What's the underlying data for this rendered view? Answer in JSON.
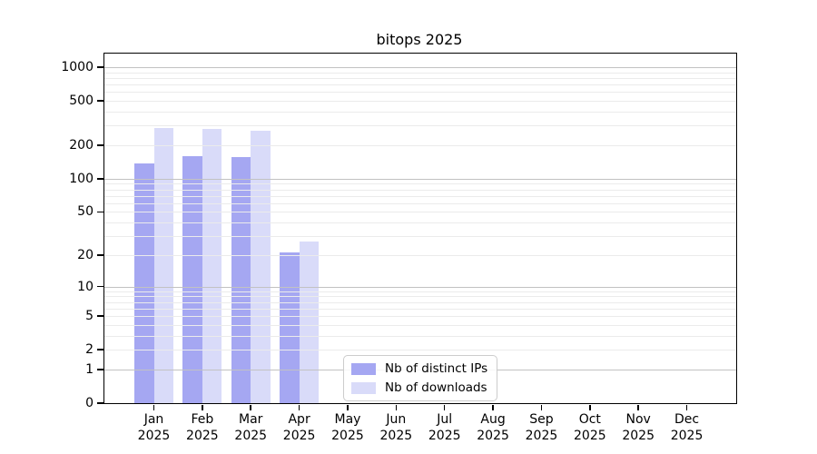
{
  "title": "bitops 2025",
  "style": {
    "background": "#ffffff",
    "spine_color": "#000000",
    "grid_major_color": "#c2c2c2",
    "grid_minor_color": "#ebebeb",
    "text_color": "#000000",
    "legend_border_color": "#cccccc"
  },
  "legend": {
    "items": [
      {
        "label": "Nb of distinct IPs"
      },
      {
        "label": "Nb of downloads"
      }
    ]
  },
  "chart_data": {
    "type": "bar",
    "title": "bitops 2025",
    "categories": [
      "Jan 2025",
      "Feb 2025",
      "Mar 2025",
      "Apr 2025",
      "May 2025",
      "Jun 2025",
      "Jul 2025",
      "Aug 2025",
      "Sep 2025",
      "Oct 2025",
      "Nov 2025",
      "Dec 2025"
    ],
    "series": [
      {
        "name": "Nb of distinct IPs",
        "color": "#a5a7f2",
        "values": [
          137,
          161,
          156,
          21,
          0,
          0,
          0,
          0,
          0,
          0,
          0,
          0
        ]
      },
      {
        "name": "Nb of downloads",
        "color": "#d9dbf9",
        "values": [
          287,
          278,
          270,
          27,
          0,
          0,
          0,
          0,
          0,
          0,
          0,
          0
        ]
      }
    ],
    "xlabel": "",
    "ylabel": "",
    "yscale": "log1p",
    "yticks": [
      0,
      1,
      2,
      5,
      10,
      20,
      50,
      100,
      200,
      500,
      1000
    ],
    "ylim": [
      0,
      1325
    ],
    "grid": "both",
    "legend_position": "lower center"
  }
}
